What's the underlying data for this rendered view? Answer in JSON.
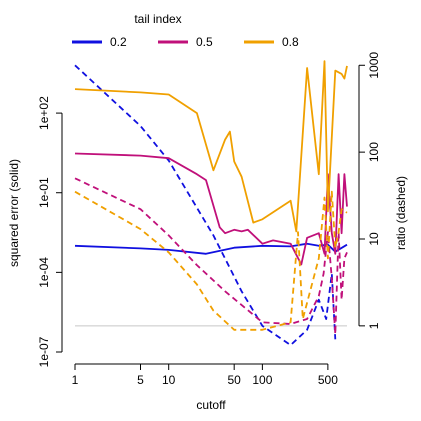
{
  "chart_data": {
    "type": "line",
    "legend": {
      "title": "tail index",
      "placement": "top"
    },
    "xlabel": "cutoff",
    "ylabel_left": "squared error (solid)",
    "ylabel_right": "ratio (dashed)",
    "x_scale": "log",
    "xlim": [
      1,
      800
    ],
    "x_ticks": [
      {
        "v": 1,
        "label": "1"
      },
      {
        "v": 5,
        "label": "5"
      },
      {
        "v": 10,
        "label": "10"
      },
      {
        "v": 50,
        "label": "50"
      },
      {
        "v": 100,
        "label": "100"
      },
      {
        "v": 500,
        "label": "500"
      }
    ],
    "y_left": {
      "scale": "log",
      "lim": [
        1e-07,
        10000
      ],
      "ticks": [
        {
          "v": 1e-07,
          "label": "1e-07"
        },
        {
          "v": 0.0001,
          "label": "1e-04"
        },
        {
          "v": 0.1,
          "label": "1e-01"
        },
        {
          "v": 100,
          "label": "1e+02"
        }
      ]
    },
    "y_right": {
      "scale": "log",
      "lim": [
        0.5,
        1150
      ],
      "ticks": [
        {
          "v": 1,
          "label": "1"
        },
        {
          "v": 10,
          "label": "10"
        },
        {
          "v": 100,
          "label": "100"
        },
        {
          "v": 1000,
          "label": "1000"
        }
      ]
    },
    "reference_line": {
      "axis": "right",
      "value": 1,
      "color": "#c8c8c8"
    },
    "series": [
      {
        "name": "0.2",
        "color": "#1010e0",
        "solid": [
          [
            1,
            0.001
          ],
          [
            5,
            0.0008
          ],
          [
            10,
            0.0007
          ],
          [
            25,
            0.0005
          ],
          [
            50,
            0.00085
          ],
          [
            100,
            0.001
          ],
          [
            200,
            0.00095
          ],
          [
            300,
            0.0012
          ],
          [
            400,
            0.001
          ],
          [
            500,
            0.0011
          ],
          [
            600,
            0.0006
          ],
          [
            800,
            0.0011
          ]
        ],
        "dashed": [
          [
            1,
            1000
          ],
          [
            5,
            200
          ],
          [
            10,
            80
          ],
          [
            30,
            11
          ],
          [
            60,
            2.5
          ],
          [
            100,
            1
          ],
          [
            200,
            0.6
          ],
          [
            300,
            0.9
          ],
          [
            400,
            2
          ],
          [
            480,
            1.2
          ],
          [
            550,
            4
          ],
          [
            600,
            0.7
          ]
        ]
      },
      {
        "name": "0.5",
        "color": "#c0107a",
        "solid": [
          [
            1,
            3
          ],
          [
            5,
            2.5
          ],
          [
            10,
            2
          ],
          [
            20,
            0.5
          ],
          [
            25,
            0.3
          ],
          [
            35,
            0.005
          ],
          [
            40,
            0.003
          ],
          [
            50,
            0.004
          ],
          [
            60,
            0.0035
          ],
          [
            70,
            0.004
          ],
          [
            100,
            0.0012
          ],
          [
            130,
            0.0016
          ],
          [
            200,
            0.0012
          ],
          [
            260,
            0.0002
          ],
          [
            300,
            0.002
          ],
          [
            400,
            0.003
          ],
          [
            460,
            0.0005
          ],
          [
            500,
            0.5
          ],
          [
            550,
            0.003
          ],
          [
            600,
            0.0005
          ],
          [
            650,
            0.5
          ],
          [
            700,
            0.003
          ],
          [
            750,
            0.5
          ],
          [
            800,
            0.03
          ]
        ],
        "dashed": [
          [
            1,
            50
          ],
          [
            5,
            22
          ],
          [
            10,
            11
          ],
          [
            20,
            5
          ],
          [
            40,
            2.5
          ],
          [
            100,
            1.1
          ],
          [
            200,
            1.05
          ],
          [
            300,
            1.2
          ],
          [
            400,
            2.2
          ],
          [
            450,
            4
          ],
          [
            500,
            12
          ],
          [
            550,
            3.5
          ],
          [
            600,
            0.8
          ],
          [
            650,
            12
          ],
          [
            700,
            2
          ],
          [
            750,
            6
          ],
          [
            800,
            7
          ]
        ]
      },
      {
        "name": "0.8",
        "color": "#f0a000",
        "solid": [
          [
            1,
            800
          ],
          [
            5,
            600
          ],
          [
            10,
            500
          ],
          [
            20,
            100
          ],
          [
            30,
            0.7
          ],
          [
            40,
            10
          ],
          [
            45,
            20
          ],
          [
            50,
            1.5
          ],
          [
            60,
            0.4
          ],
          [
            80,
            0.0075
          ],
          [
            100,
            0.01
          ],
          [
            200,
            0.05
          ],
          [
            230,
            0.0035
          ],
          [
            300,
            5000
          ],
          [
            400,
            0.5
          ],
          [
            460,
            9000
          ],
          [
            500,
            0.02
          ],
          [
            600,
            4000
          ],
          [
            700,
            3000
          ],
          [
            750,
            2000
          ],
          [
            800,
            6000
          ]
        ],
        "dashed": [
          [
            1,
            35
          ],
          [
            5,
            13
          ],
          [
            10,
            7
          ],
          [
            20,
            3
          ],
          [
            30,
            1.5
          ],
          [
            50,
            0.9
          ],
          [
            100,
            0.9
          ],
          [
            200,
            1.1
          ],
          [
            240,
            12
          ],
          [
            270,
            1.2
          ],
          [
            400,
            6
          ],
          [
            460,
            30
          ],
          [
            500,
            6
          ],
          [
            550,
            35
          ],
          [
            600,
            8
          ],
          [
            650,
            12
          ],
          [
            700,
            22
          ],
          [
            800,
            20
          ]
        ]
      }
    ],
    "grid": false
  }
}
